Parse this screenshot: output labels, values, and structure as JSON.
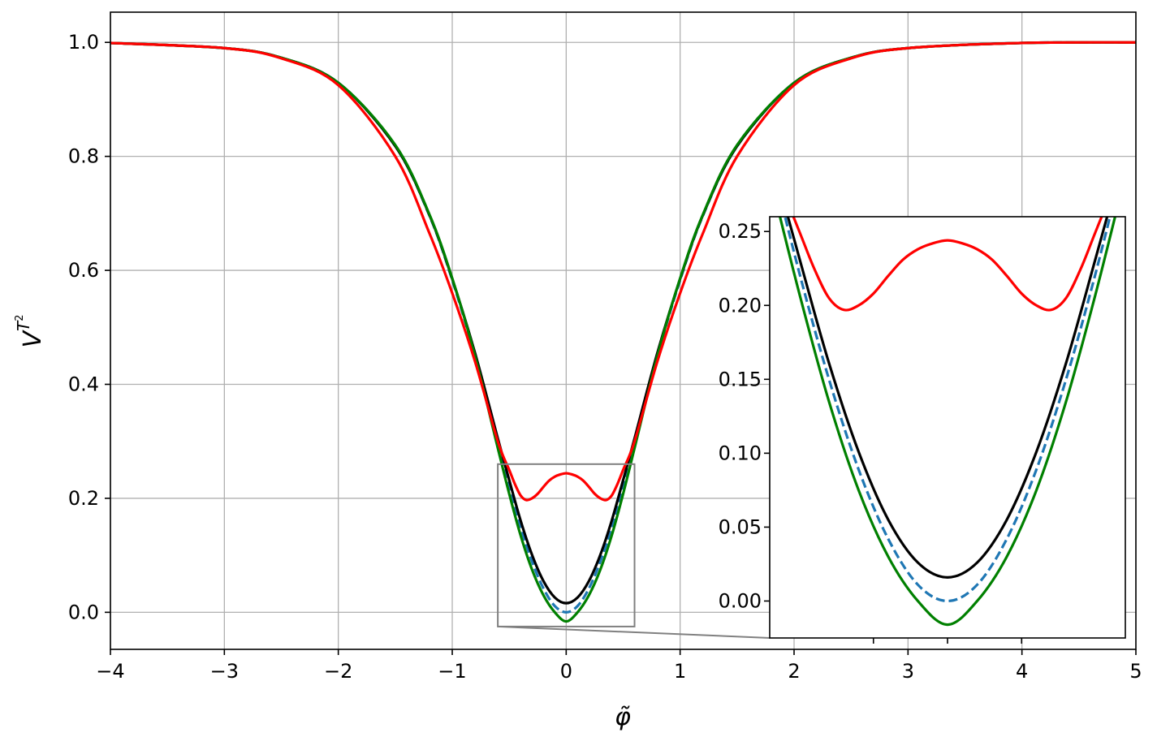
{
  "chart_data": [
    {
      "type": "line",
      "xlabel": "φ̃",
      "ylabel_base": "V",
      "ylabel_sup_base": "T",
      "ylabel_sup_exp": "2",
      "xlim": [
        -4,
        5
      ],
      "ylim": [
        -0.065,
        1.053
      ],
      "xticks": [
        -4,
        -3,
        -2,
        -1,
        0,
        1,
        2,
        3,
        4,
        5
      ],
      "xtick_labels": [
        "−4",
        "−3",
        "−2",
        "−1",
        "0",
        "1",
        "2",
        "3",
        "4",
        "5"
      ],
      "yticks": [
        0.0,
        0.2,
        0.4,
        0.6,
        0.8,
        1.0
      ],
      "ytick_labels": [
        "0.0",
        "0.2",
        "0.4",
        "0.6",
        "0.8",
        "1.0"
      ],
      "grid": true,
      "legend": "none",
      "series": [
        {
          "color": "#1f77b4",
          "style": "dashed",
          "x": [
            -4.0,
            -3.0,
            -2.5,
            -2.0,
            -1.5,
            -1.2,
            -1.0,
            -0.8,
            -0.6,
            -0.5,
            -0.4,
            -0.3,
            -0.2,
            -0.1,
            0.0,
            0.1,
            0.2,
            0.3,
            0.4,
            0.5,
            0.6,
            0.8,
            1.0,
            1.2,
            1.5,
            2.0,
            2.5,
            3.0,
            4.0,
            5.0
          ],
          "y": [
            0.999,
            0.99,
            0.973,
            0.929,
            0.818,
            0.696,
            0.583,
            0.45,
            0.302,
            0.222,
            0.15,
            0.089,
            0.042,
            0.011,
            0.0,
            0.011,
            0.042,
            0.089,
            0.15,
            0.222,
            0.302,
            0.45,
            0.583,
            0.696,
            0.818,
            0.929,
            0.973,
            0.99,
            0.999,
            1.0
          ]
        },
        {
          "color": "#000000",
          "style": "solid",
          "x": [
            -4.0,
            -3.0,
            -2.5,
            -2.0,
            -1.5,
            -1.2,
            -1.0,
            -0.8,
            -0.6,
            -0.5,
            -0.4,
            -0.3,
            -0.2,
            -0.1,
            0.0,
            0.1,
            0.2,
            0.3,
            0.4,
            0.5,
            0.6,
            0.8,
            1.0,
            1.2,
            1.5,
            2.0,
            2.5,
            3.0,
            4.0,
            5.0
          ],
          "y": [
            0.999,
            0.99,
            0.973,
            0.929,
            0.818,
            0.697,
            0.585,
            0.455,
            0.305,
            0.232,
            0.161,
            0.101,
            0.055,
            0.026,
            0.016,
            0.026,
            0.055,
            0.101,
            0.161,
            0.232,
            0.305,
            0.455,
            0.585,
            0.697,
            0.818,
            0.929,
            0.973,
            0.99,
            0.999,
            1.0
          ]
        },
        {
          "color": "#008000",
          "style": "solid",
          "x": [
            -4.0,
            -3.0,
            -2.5,
            -2.0,
            -1.5,
            -1.2,
            -1.0,
            -0.8,
            -0.6,
            -0.5,
            -0.4,
            -0.3,
            -0.2,
            -0.1,
            0.0,
            0.1,
            0.2,
            0.3,
            0.4,
            0.5,
            0.6,
            0.8,
            1.0,
            1.2,
            1.5,
            2.0,
            2.5,
            3.0,
            4.0,
            5.0
          ],
          "y": [
            0.999,
            0.99,
            0.973,
            0.929,
            0.82,
            0.698,
            0.586,
            0.45,
            0.288,
            0.208,
            0.135,
            0.075,
            0.03,
            0.0,
            -0.016,
            0.0,
            0.03,
            0.075,
            0.135,
            0.208,
            0.288,
            0.45,
            0.586,
            0.698,
            0.82,
            0.929,
            0.973,
            0.99,
            0.999,
            1.0
          ]
        },
        {
          "color": "#ff0000",
          "style": "solid",
          "x": [
            -4.0,
            -3.0,
            -2.5,
            -2.0,
            -1.5,
            -1.2,
            -1.0,
            -0.8,
            -0.6,
            -0.5,
            -0.45,
            -0.4,
            -0.35,
            -0.3,
            -0.25,
            -0.2,
            -0.15,
            -0.1,
            -0.05,
            0.0,
            0.05,
            0.1,
            0.15,
            0.2,
            0.25,
            0.3,
            0.35,
            0.4,
            0.45,
            0.5,
            0.6,
            0.8,
            1.0,
            1.2,
            1.5,
            2.0,
            2.5,
            3.0,
            4.0,
            5.0
          ],
          "y": [
            0.999,
            0.99,
            0.972,
            0.925,
            0.8,
            0.665,
            0.56,
            0.44,
            0.3,
            0.25,
            0.225,
            0.205,
            0.197,
            0.2,
            0.208,
            0.22,
            0.231,
            0.238,
            0.242,
            0.244,
            0.242,
            0.238,
            0.231,
            0.22,
            0.208,
            0.2,
            0.197,
            0.205,
            0.225,
            0.25,
            0.3,
            0.44,
            0.56,
            0.665,
            0.8,
            0.925,
            0.972,
            0.99,
            0.999,
            1.0
          ]
        }
      ],
      "zoom_region": {
        "x": [
          -0.6,
          0.6
        ],
        "y": [
          -0.025,
          0.26
        ]
      }
    },
    {
      "type": "line",
      "xlim": [
        -0.6,
        0.6
      ],
      "ylim": [
        -0.025,
        0.26
      ],
      "yticks": [
        0.0,
        0.05,
        0.1,
        0.15,
        0.2,
        0.25
      ],
      "ytick_labels": [
        "0.00",
        "0.05",
        "0.10",
        "0.15",
        "0.20",
        "0.25"
      ],
      "xtick_marks": [
        -0.25,
        0.0,
        0.25
      ],
      "grid": false,
      "legend": "none",
      "series": [
        {
          "color": "#1f77b4",
          "style": "dashed",
          "x": [
            -0.6,
            -0.5,
            -0.4,
            -0.3,
            -0.2,
            -0.1,
            0.0,
            0.1,
            0.2,
            0.3,
            0.4,
            0.5,
            0.6
          ],
          "y": [
            0.302,
            0.222,
            0.15,
            0.089,
            0.042,
            0.011,
            0.0,
            0.011,
            0.042,
            0.089,
            0.15,
            0.222,
            0.302
          ]
        },
        {
          "color": "#000000",
          "style": "solid",
          "x": [
            -0.6,
            -0.5,
            -0.4,
            -0.3,
            -0.2,
            -0.1,
            0.0,
            0.1,
            0.2,
            0.3,
            0.4,
            0.5,
            0.6
          ],
          "y": [
            0.305,
            0.232,
            0.161,
            0.101,
            0.055,
            0.026,
            0.016,
            0.026,
            0.055,
            0.101,
            0.161,
            0.232,
            0.305
          ]
        },
        {
          "color": "#008000",
          "style": "solid",
          "x": [
            -0.6,
            -0.5,
            -0.4,
            -0.3,
            -0.2,
            -0.1,
            0.0,
            0.1,
            0.2,
            0.3,
            0.4,
            0.5,
            0.6
          ],
          "y": [
            0.288,
            0.208,
            0.135,
            0.075,
            0.03,
            0.0,
            -0.016,
            0.0,
            0.03,
            0.075,
            0.135,
            0.208,
            0.288
          ]
        },
        {
          "color": "#ff0000",
          "style": "solid",
          "x": [
            -0.6,
            -0.5,
            -0.45,
            -0.4,
            -0.35,
            -0.3,
            -0.25,
            -0.2,
            -0.15,
            -0.1,
            -0.05,
            0.0,
            0.05,
            0.1,
            0.15,
            0.2,
            0.25,
            0.3,
            0.35,
            0.4,
            0.45,
            0.5,
            0.6
          ],
          "y": [
            0.3,
            0.25,
            0.225,
            0.205,
            0.197,
            0.2,
            0.208,
            0.22,
            0.231,
            0.238,
            0.242,
            0.244,
            0.242,
            0.238,
            0.231,
            0.22,
            0.208,
            0.2,
            0.197,
            0.205,
            0.225,
            0.25,
            0.3
          ]
        }
      ]
    }
  ]
}
